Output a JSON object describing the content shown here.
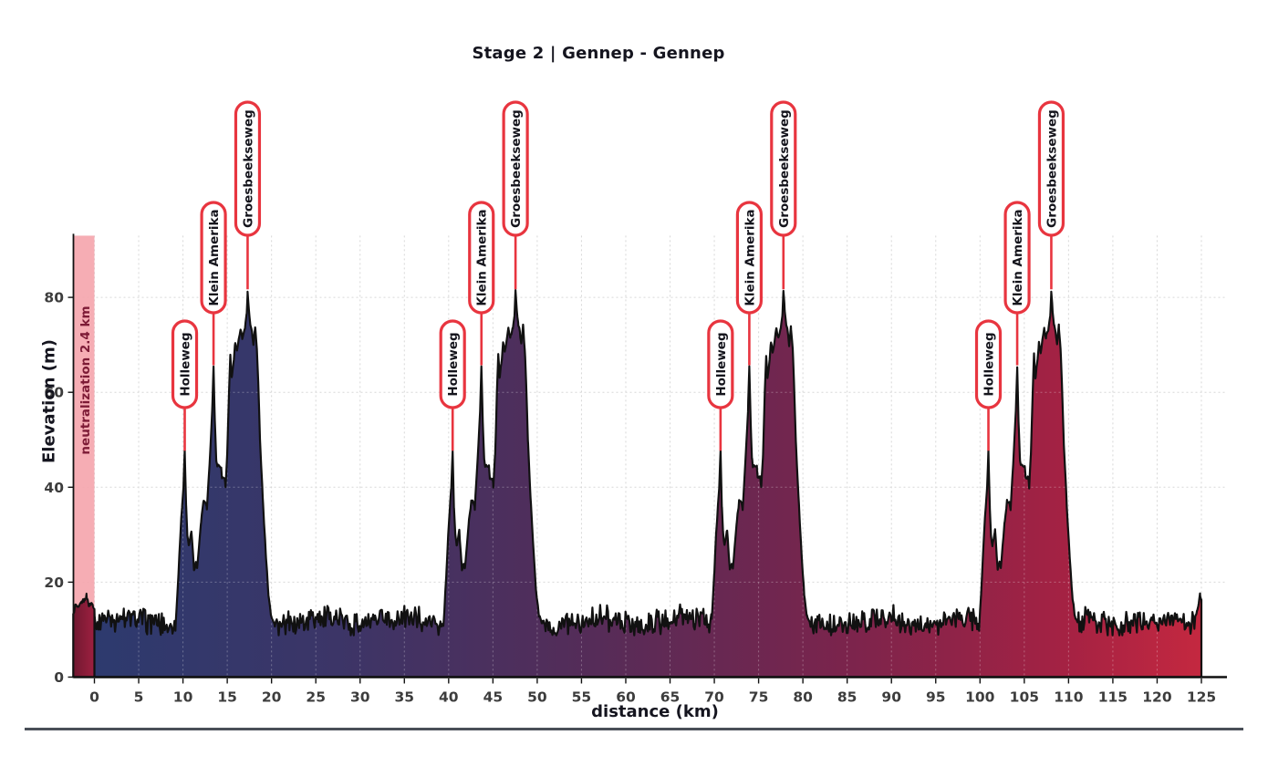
{
  "title": "Stage 2 | Gennep - Gennep",
  "chart_data": {
    "type": "area",
    "title": "Stage 2 | Gennep - Gennep",
    "xlabel": "distance (km)",
    "ylabel": "Elevation (m)",
    "xlim": [
      -2.4,
      128
    ],
    "ylim": [
      0,
      93
    ],
    "x_ticks": [
      0,
      5,
      10,
      15,
      20,
      25,
      30,
      35,
      40,
      45,
      50,
      55,
      60,
      65,
      70,
      75,
      80,
      85,
      90,
      95,
      100,
      105,
      110,
      115,
      120,
      125
    ],
    "y_ticks": [
      0,
      20,
      40,
      60,
      80
    ],
    "grid": "dashed",
    "laps": 4,
    "lap_length_km": 30.25,
    "total_distance_km": 125,
    "neutralization": {
      "label": "neutralization 2.4 km",
      "start_km": -2.4,
      "end_km": 0,
      "profile_keypoints": [
        [
          -2.4,
          13.0
        ],
        [
          -2.15,
          15.2
        ],
        [
          -1.8,
          14.4
        ],
        [
          -1.45,
          15.8
        ],
        [
          -1.15,
          16.2
        ],
        [
          -0.9,
          17.2
        ],
        [
          -0.6,
          15.0
        ],
        [
          -0.35,
          15.6
        ],
        [
          -0.15,
          15.2
        ],
        [
          0,
          14.5
        ]
      ]
    },
    "climbs": [
      {
        "label": "Holleweg",
        "km_in_lap": 10.2,
        "peak_elevation_m": 47.5,
        "occurrences_km": [
          10.2,
          40.45,
          70.7,
          100.95
        ]
      },
      {
        "label": "Klein Amerika",
        "km_in_lap": 13.45,
        "peak_elevation_m": 65.5,
        "occurrences_km": [
          13.45,
          43.7,
          73.95,
          104.2
        ]
      },
      {
        "label": "Groesbeekseweg",
        "km_in_lap": 17.3,
        "peak_elevation_m": 81.5,
        "occurrences_km": [
          17.3,
          47.55,
          77.8,
          108.05
        ]
      }
    ],
    "lap_profile_keypoints": [
      [
        9.2,
        12
      ],
      [
        9.5,
        22
      ],
      [
        9.7,
        30
      ],
      [
        9.9,
        36
      ],
      [
        10.05,
        40
      ],
      [
        10.2,
        47.5
      ],
      [
        10.35,
        36
      ],
      [
        10.5,
        30
      ],
      [
        10.65,
        27.5
      ],
      [
        10.95,
        31
      ],
      [
        11.25,
        22.5
      ],
      [
        11.45,
        24
      ],
      [
        11.6,
        23
      ],
      [
        12.05,
        33
      ],
      [
        12.3,
        37
      ],
      [
        12.55,
        37
      ],
      [
        12.7,
        35.5
      ],
      [
        13.0,
        45
      ],
      [
        13.3,
        56
      ],
      [
        13.45,
        65.5
      ],
      [
        13.6,
        54
      ],
      [
        13.75,
        46
      ],
      [
        13.85,
        44.5
      ],
      [
        14.3,
        44.5
      ],
      [
        14.4,
        42
      ],
      [
        14.7,
        42
      ],
      [
        14.8,
        40
      ],
      [
        15.0,
        47
      ],
      [
        15.2,
        60
      ],
      [
        15.35,
        68
      ],
      [
        15.5,
        63
      ],
      [
        15.7,
        66
      ],
      [
        15.9,
        70.5
      ],
      [
        16.1,
        68.5
      ],
      [
        16.3,
        71
      ],
      [
        16.5,
        73.5
      ],
      [
        16.7,
        71.5
      ],
      [
        17.0,
        73.5
      ],
      [
        17.2,
        76.5
      ],
      [
        17.3,
        81.5
      ],
      [
        17.45,
        77
      ],
      [
        17.6,
        74.5
      ],
      [
        17.8,
        72.5
      ],
      [
        17.95,
        70
      ],
      [
        18.15,
        74
      ],
      [
        18.35,
        69
      ],
      [
        18.5,
        62
      ],
      [
        18.7,
        50
      ],
      [
        19.0,
        38
      ],
      [
        19.35,
        26
      ],
      [
        19.65,
        17.5
      ],
      [
        19.95,
        13
      ],
      [
        20.3,
        11.5
      ]
    ],
    "finish_keypoints": [
      [
        124.3,
        12.5
      ],
      [
        124.5,
        14
      ],
      [
        124.7,
        15.5
      ],
      [
        124.85,
        17.3
      ],
      [
        125,
        16
      ]
    ],
    "baseline": {
      "mean_elevation_m": 11.6,
      "noise_amplitude_m": 3.5,
      "range_m": [
        9,
        16
      ]
    },
    "colors": {
      "gradient_start": "#2d3a6e",
      "gradient_mid": "#552c58",
      "gradient_end": "#c42840",
      "neutral_fill_start": "#701830",
      "neutral_fill_end": "#9e2040",
      "neutral_band": "#f5a6ae",
      "neutral_text": "#7d1b36",
      "outline": "#111111",
      "accent_red": "#e8353f",
      "grid": "#d7d7d7",
      "tick_text": "#3d3d3d"
    }
  },
  "annotations": {
    "climb_labels": [
      "Holleweg",
      "Klein Amerika",
      "Groesbeekseweg"
    ],
    "neutralization_label": "neutralization 2.4 km"
  }
}
